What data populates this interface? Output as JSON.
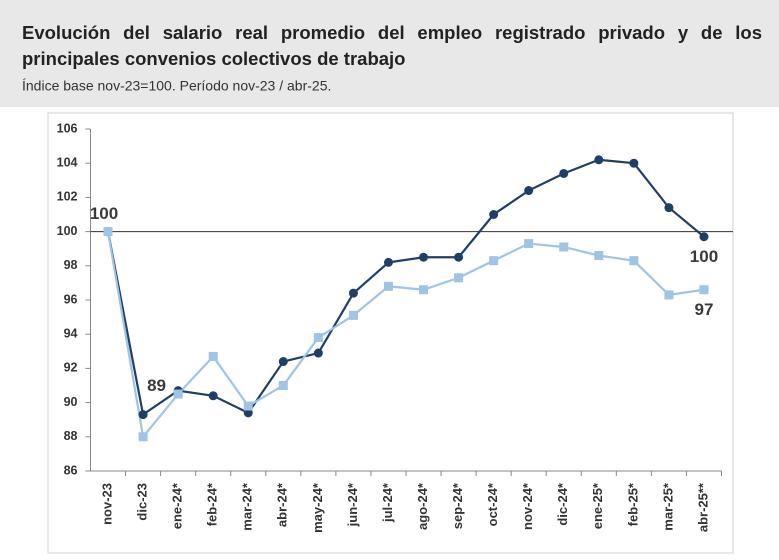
{
  "chart_data": {
    "type": "line",
    "title": "Evolución del salario real promedio del empleo registrado privado y de los principales convenios colectivos de trabajo",
    "subtitle": "Índice base nov-23=100. Período nov-23 / abr-25.",
    "categories": [
      "nov-23",
      "dic-23",
      "ene-24*",
      "feb-24*",
      "mar-24*",
      "abr-24*",
      "may-24*",
      "jun-24*",
      "jul-24*",
      "ago-24*",
      "sep-24*",
      "oct-24*",
      "nov-24*",
      "dic-24*",
      "ene-25*",
      "feb-25*",
      "mar-25*",
      "abr-25**"
    ],
    "series": [
      {
        "color": "#1f3f66",
        "marker": "circle",
        "values": [
          100,
          89.3,
          90.7,
          90.4,
          89.4,
          92.4,
          92.9,
          96.4,
          98.2,
          98.5,
          98.5,
          101.0,
          102.4,
          103.4,
          104.2,
          104.0,
          101.4,
          99.7
        ],
        "value_labels": [
          "100",
          "89",
          null,
          null,
          null,
          null,
          null,
          null,
          null,
          null,
          null,
          null,
          null,
          null,
          null,
          null,
          null,
          "100"
        ]
      },
      {
        "color": "#9ec4e6",
        "marker": "square",
        "values": [
          100,
          88.0,
          90.5,
          92.7,
          89.8,
          91.0,
          93.8,
          95.1,
          96.8,
          96.6,
          97.3,
          98.3,
          99.3,
          99.1,
          98.6,
          98.3,
          96.3,
          96.6
        ],
        "value_labels": [
          null,
          null,
          null,
          null,
          null,
          null,
          null,
          null,
          null,
          null,
          null,
          null,
          null,
          null,
          null,
          null,
          null,
          "97"
        ]
      }
    ],
    "ylim": [
      86,
      106
    ],
    "yticks": [
      86,
      88,
      90,
      92,
      94,
      96,
      98,
      100,
      102,
      104,
      106
    ],
    "reference_line": 100,
    "grid": false
  }
}
